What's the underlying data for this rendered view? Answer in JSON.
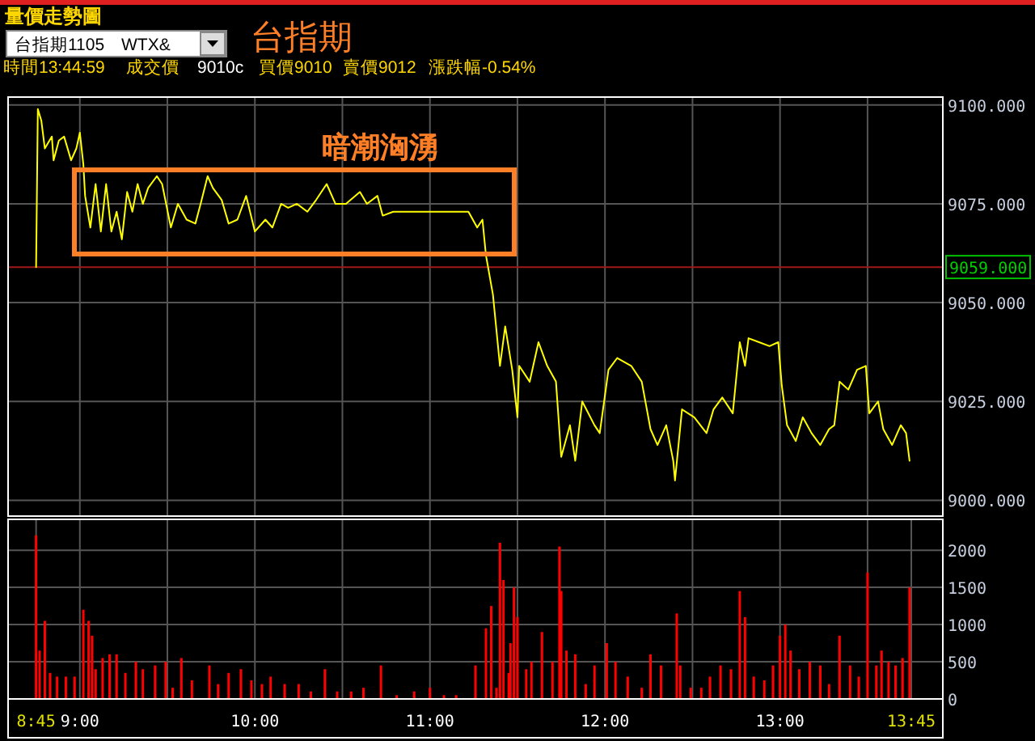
{
  "chart_data": [
    {
      "type": "line",
      "title": "量價走勢圖",
      "subtitle": "台指期",
      "annotations": [
        "台指期1105",
        "WTX&",
        "時間13:44:59",
        "成交價",
        "9010c",
        "買價9010",
        "賣價9012",
        "漲跌幅-0.54%",
        "暗潮洶湧"
      ],
      "x": [
        8.75,
        8.76,
        8.78,
        8.8,
        8.84,
        8.85,
        8.88,
        8.91,
        8.95,
        8.98,
        9.0,
        9.02,
        9.03,
        9.06,
        9.09,
        9.12,
        9.15,
        9.18,
        9.21,
        9.24,
        9.27,
        9.3,
        9.33,
        9.36,
        9.39,
        9.44,
        9.47,
        9.52,
        9.56,
        9.61,
        9.66,
        9.69,
        9.73,
        9.76,
        9.81,
        9.85,
        9.9,
        9.95,
        10.0,
        10.06,
        10.1,
        10.15,
        10.19,
        10.24,
        10.3,
        10.35,
        10.41,
        10.46,
        10.52,
        10.6,
        10.64,
        10.7,
        10.73,
        10.79,
        10.86,
        10.92,
        10.98,
        11.04,
        11.1,
        11.16,
        11.22,
        11.27,
        11.3,
        11.32,
        11.36,
        11.4,
        11.43,
        11.47,
        11.5,
        11.51,
        11.57,
        11.62,
        11.67,
        11.72,
        11.75,
        11.8,
        11.83,
        11.87,
        11.94,
        11.97,
        12.02,
        12.07,
        12.15,
        12.21,
        12.26,
        12.3,
        12.35,
        12.39,
        12.4,
        12.44,
        12.51,
        12.58,
        12.62,
        12.67,
        12.73,
        12.77,
        12.8,
        12.82,
        12.88,
        12.94,
        12.99,
        13.01,
        13.04,
        13.09,
        13.13,
        13.18,
        13.23,
        13.28,
        13.31,
        13.34,
        13.39,
        13.44,
        13.49,
        13.51,
        13.56,
        13.59,
        13.64,
        13.69,
        13.72,
        13.74
      ],
      "values": [
        9059,
        9099,
        9096,
        9089,
        9092,
        9086,
        9091,
        9092,
        9086,
        9089,
        9093,
        9085,
        9077,
        9069,
        9080,
        9068,
        9080,
        9068,
        9073,
        9066,
        9078,
        9073,
        9080,
        9075,
        9079,
        9082,
        9080,
        9069,
        9075,
        9071,
        9070,
        9075,
        9082,
        9079,
        9076,
        9070,
        9071,
        9077,
        9068,
        9071,
        9069,
        9075,
        9074,
        9075,
        9073,
        9076,
        9080,
        9075,
        9075,
        9078,
        9075,
        9077,
        9072,
        9073,
        9073,
        9073,
        9073,
        9073,
        9073,
        9073,
        9073,
        9069,
        9071,
        9062,
        9052,
        9034,
        9044,
        9033,
        9021,
        9034,
        9030,
        9040,
        9034,
        9030,
        9011,
        9019,
        9010,
        9025,
        9019,
        9017,
        9033,
        9036,
        9034,
        9030,
        9018,
        9014,
        9019,
        9010,
        9005,
        9023,
        9021,
        9017,
        9023,
        9026,
        9022,
        9040,
        9034,
        9041,
        9040,
        9039,
        9040,
        9029,
        9019,
        9015,
        9021,
        9017,
        9014,
        9018,
        9019,
        9030,
        9028,
        9033,
        9034,
        9022,
        9025,
        9018,
        9014,
        9019,
        9017,
        9010
      ],
      "color": "#ffff00",
      "xlim": [
        8.59,
        13.93
      ],
      "xticks": [
        {
          "value": 9,
          "label": null
        },
        {
          "value": 9.5,
          "label": null
        },
        {
          "value": 10,
          "label": null
        },
        {
          "value": 10.5,
          "label": null
        },
        {
          "value": 11,
          "label": null
        },
        {
          "value": 11.5,
          "label": null
        },
        {
          "value": 12,
          "label": null
        },
        {
          "value": 12.5,
          "label": null
        },
        {
          "value": 13,
          "label": null
        },
        {
          "value": 13.5,
          "label": null
        }
      ],
      "ylim": [
        8996,
        9102
      ],
      "yticks": [
        {
          "value": 9000,
          "label": "9000.000"
        },
        {
          "value": 9025,
          "label": "9025.000"
        },
        {
          "value": 9050,
          "label": "9050.000"
        },
        {
          "value": 9075,
          "label": "9075.000"
        },
        {
          "value": 9100,
          "label": "9100.000"
        }
      ],
      "ref_lines": [
        {
          "axis": "y",
          "value": 9059,
          "label": "9059.000",
          "color": "#a01818"
        }
      ],
      "grid": true,
      "tick_labels": "y"
    },
    {
      "type": "bar",
      "x": [
        8.75,
        8.77,
        8.8,
        8.83,
        8.87,
        8.92,
        8.97,
        9.02,
        9.05,
        9.07,
        9.09,
        9.13,
        9.17,
        9.21,
        9.26,
        9.32,
        9.36,
        9.43,
        9.49,
        9.53,
        9.58,
        9.64,
        9.74,
        9.79,
        9.85,
        9.92,
        9.98,
        10.04,
        10.09,
        10.17,
        10.25,
        10.32,
        10.4,
        10.47,
        10.55,
        10.62,
        10.72,
        10.81,
        10.91,
        11.0,
        11.08,
        11.15,
        11.26,
        11.32,
        11.35,
        11.38,
        11.4,
        11.42,
        11.45,
        11.46,
        11.48,
        11.5,
        11.55,
        11.58,
        11.64,
        11.7,
        11.74,
        11.75,
        11.78,
        11.83,
        11.89,
        11.94,
        12.01,
        12.06,
        12.13,
        12.21,
        12.26,
        12.32,
        12.41,
        12.43,
        12.49,
        12.55,
        12.6,
        12.66,
        12.72,
        12.77,
        12.8,
        12.85,
        12.91,
        12.96,
        13.0,
        13.03,
        13.06,
        13.11,
        13.17,
        13.23,
        13.28,
        13.34,
        13.4,
        13.45,
        13.5,
        13.55,
        13.58,
        13.62,
        13.66,
        13.7,
        13.74
      ],
      "values": [
        2200,
        650,
        1050,
        350,
        300,
        300,
        300,
        1200,
        1050,
        850,
        400,
        550,
        600,
        600,
        350,
        500,
        400,
        450,
        500,
        150,
        550,
        250,
        450,
        200,
        350,
        400,
        250,
        200,
        300,
        200,
        200,
        100,
        400,
        100,
        100,
        150,
        450,
        50,
        100,
        150,
        50,
        50,
        450,
        950,
        1250,
        150,
        2100,
        1600,
        350,
        750,
        1500,
        1100,
        400,
        500,
        900,
        500,
        2050,
        1450,
        650,
        600,
        200,
        450,
        750,
        500,
        300,
        150,
        600,
        450,
        1150,
        450,
        150,
        150,
        300,
        450,
        400,
        1450,
        1100,
        300,
        250,
        450,
        850,
        1000,
        650,
        400,
        500,
        450,
        200,
        850,
        450,
        300,
        1700,
        450,
        650,
        500,
        450,
        550,
        1500
      ],
      "color": "#ff0000",
      "xlim": [
        8.59,
        13.93
      ],
      "xticks": [
        {
          "value": 8.75,
          "label": "8:45"
        },
        {
          "value": 9,
          "label": "9:00"
        },
        {
          "value": 9.5,
          "label": null
        },
        {
          "value": 10,
          "label": "10:00"
        },
        {
          "value": 10.5,
          "label": null
        },
        {
          "value": 11,
          "label": "11:00"
        },
        {
          "value": 11.5,
          "label": null
        },
        {
          "value": 12,
          "label": "12:00"
        },
        {
          "value": 12.5,
          "label": null
        },
        {
          "value": 13,
          "label": "13:00"
        },
        {
          "value": 13.5,
          "label": null
        },
        {
          "value": 13.75,
          "label": "13:45"
        }
      ],
      "ylim": [
        0,
        2415
      ],
      "yticks": [
        0,
        500,
        1000,
        1500,
        2000
      ],
      "grid": true
    }
  ]
}
